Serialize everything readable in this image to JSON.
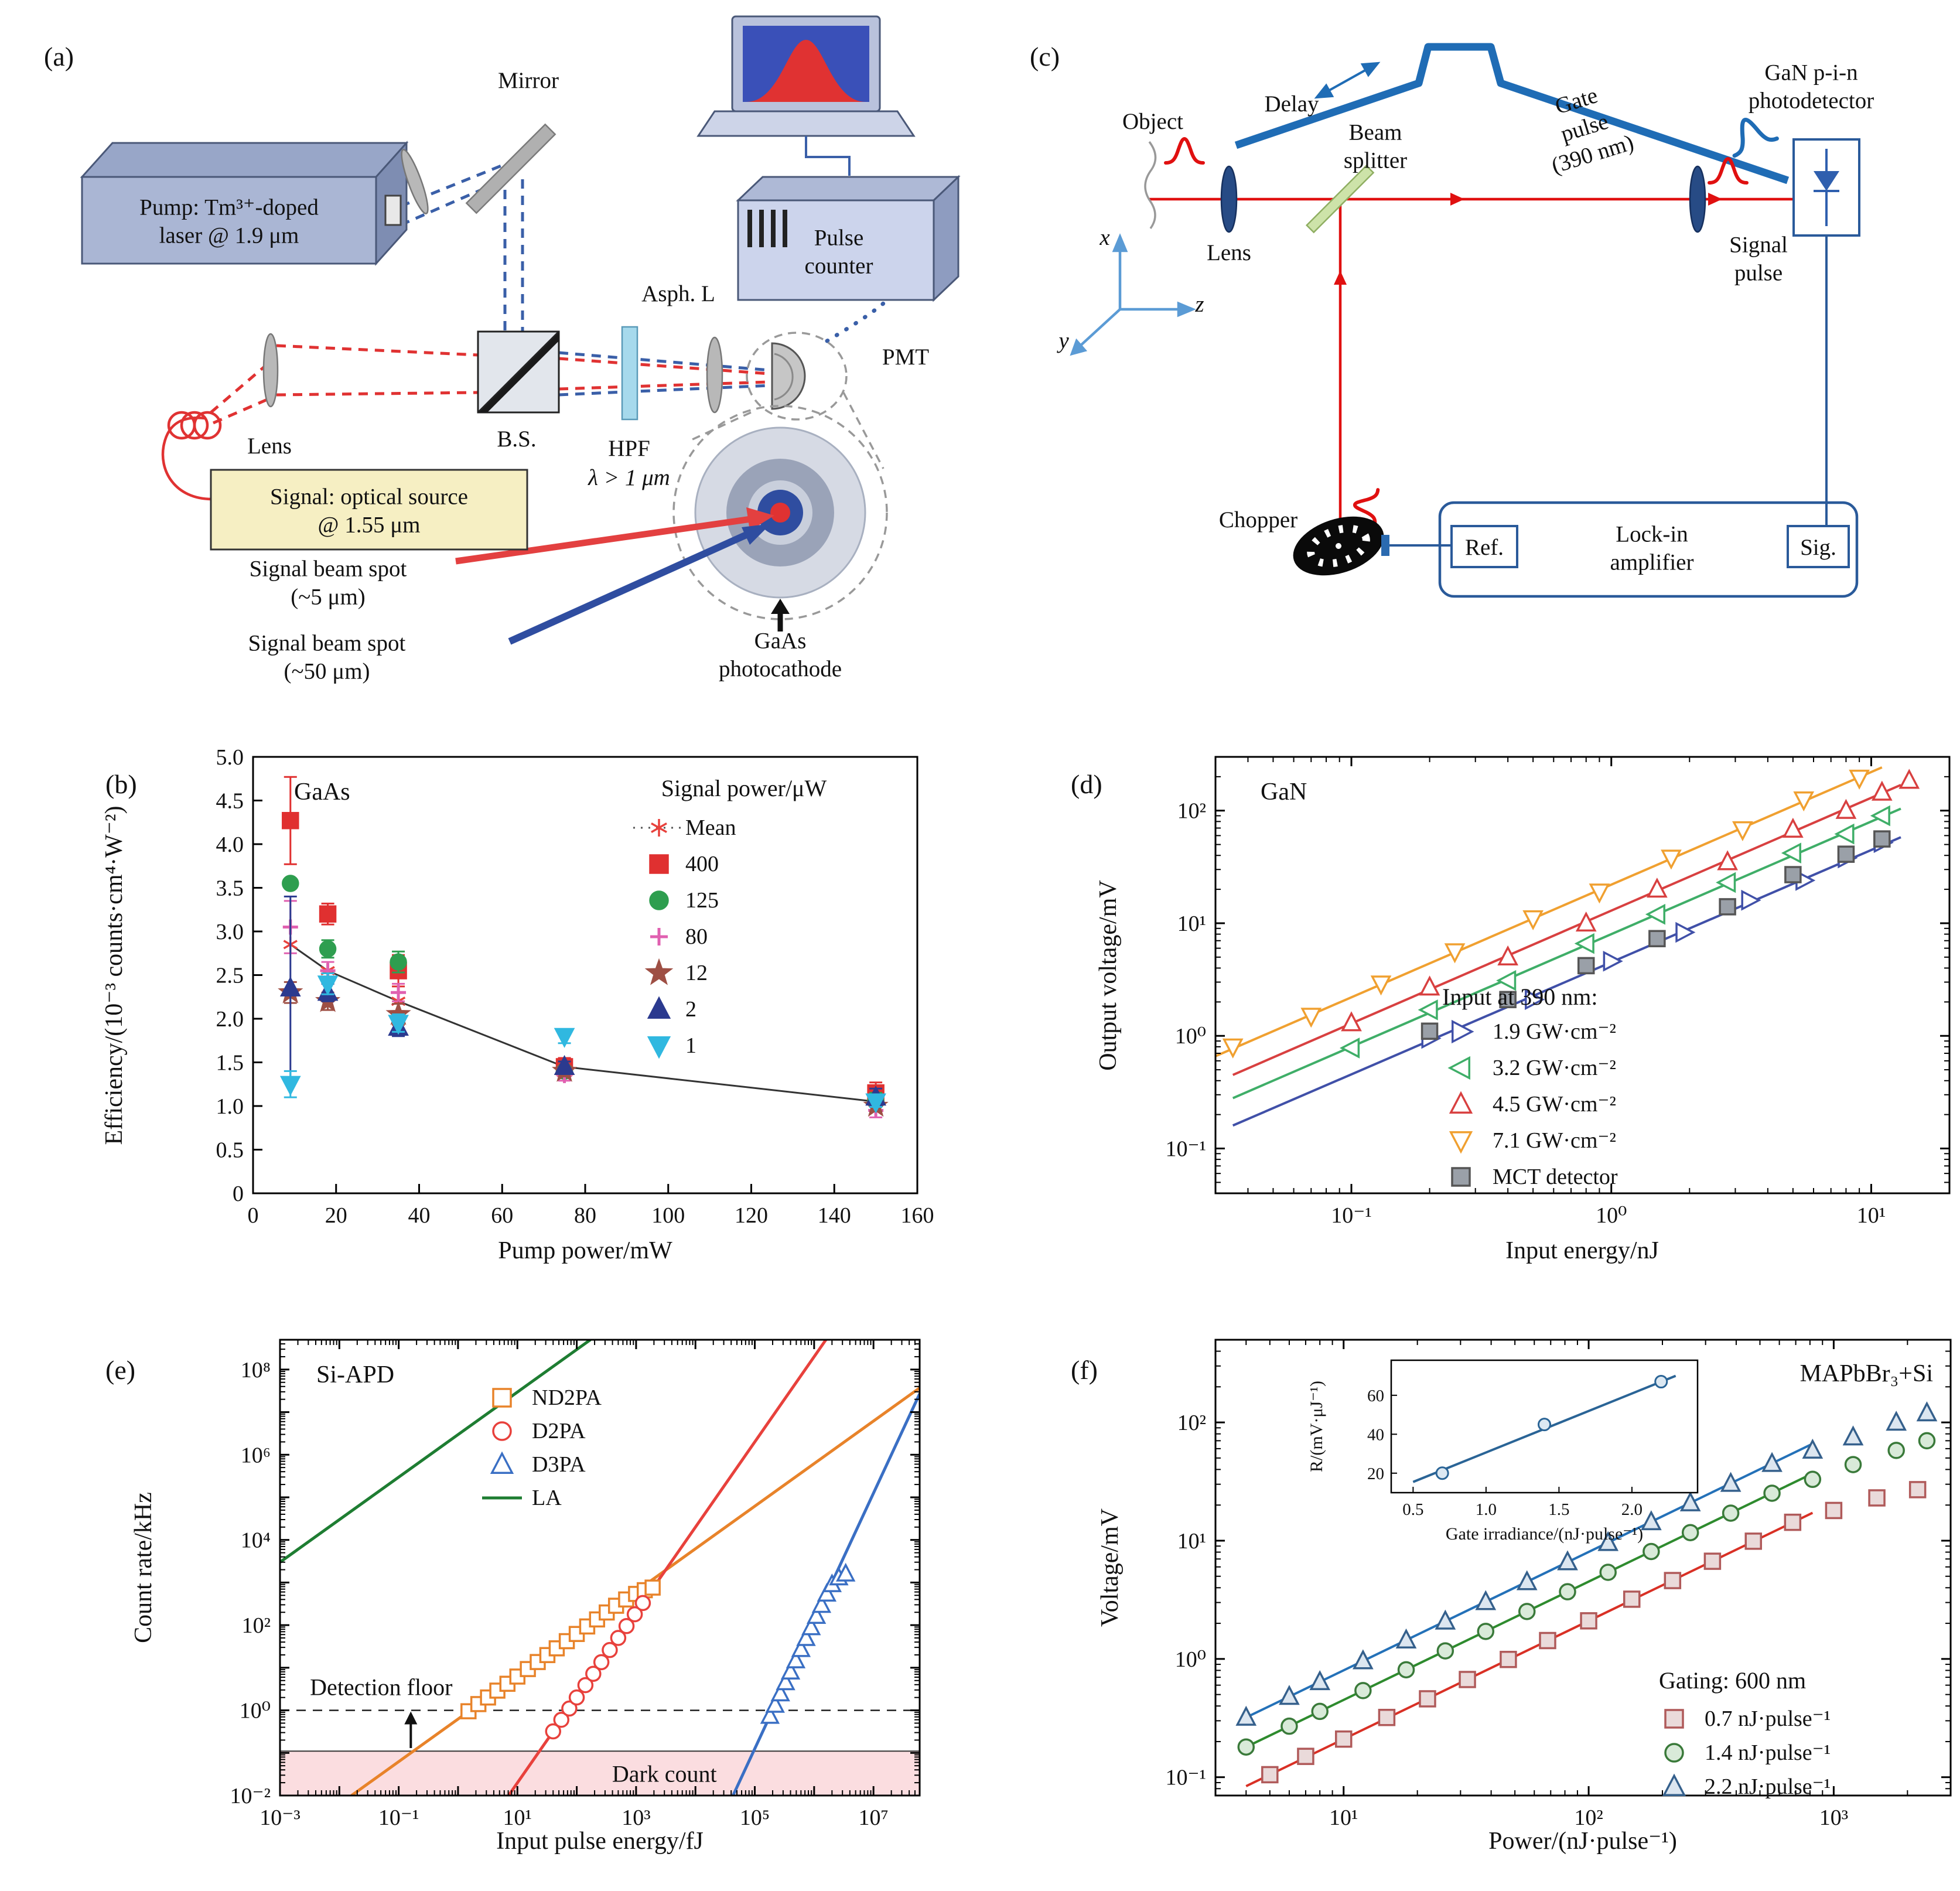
{
  "panel_a": {
    "tag": "(a)",
    "labels": {
      "pump": "Pump: Tm³⁺-doped\nlaser @ 1.9 μm",
      "mirror": "Mirror",
      "asph_l": "Asph. L",
      "pulse_counter": "Pulse\ncounter",
      "pmt": "PMT",
      "lens": "Lens",
      "bs": "B.S.",
      "hpf": "HPF",
      "hpf_cutoff": "λ > 1 μm",
      "signal_source": "Signal: optical source\n@ 1.55 μm",
      "spot_small": "Signal beam spot\n(~5 μm)",
      "spot_large": "Signal beam spot\n(~50 μm)",
      "photocathode": "GaAs\nphotocathode"
    }
  },
  "panel_c": {
    "tag": "(c)",
    "labels": {
      "delay": "Delay",
      "gate_pulse": "Gate\npulse\n(390 nm)",
      "detector": "GaN p-i-n\nphotodetector",
      "object": "Object",
      "beam_splitter": "Beam\nsplitter",
      "lens": "Lens",
      "signal_pulse": "Signal\npulse",
      "chopper": "Chopper",
      "lockin": "Lock-in\namplifier",
      "ref": "Ref.",
      "sig": "Sig.",
      "ax_x": "x",
      "ax_y": "y",
      "ax_z": "z"
    }
  },
  "chart_data": [
    {
      "id": "b",
      "panel_tag": "(b)",
      "type": "scatter",
      "title": "GaAs",
      "xlabel": "Pump power/mW",
      "ylabel": "Efficiency/(10⁻³ counts·cm⁴·W⁻²)",
      "xlim": [
        0,
        160
      ],
      "ylim": [
        0,
        5
      ],
      "xticks": [
        0,
        20,
        40,
        60,
        80,
        100,
        120,
        140,
        160
      ],
      "xtick_labels": [
        "0",
        "20",
        "40",
        "60",
        "80",
        "100",
        "120",
        "140",
        "160"
      ],
      "yticks": [
        0,
        0.5,
        1,
        1.5,
        2,
        2.5,
        3,
        3.5,
        4,
        4.5,
        5
      ],
      "ytick_labels": [
        "0",
        "0.5",
        "1.0",
        "1.5",
        "2.0",
        "2.5",
        "3.0",
        "3.5",
        "4.0",
        "4.5",
        "5.0"
      ],
      "legend_title": "Signal power/μW",
      "series": [
        {
          "name": "Mean",
          "marker": "asterisk",
          "color": "#e8413c",
          "connect": "#333333",
          "x": [
            9,
            18,
            35,
            75,
            150
          ],
          "y": [
            2.85,
            2.55,
            2.2,
            1.45,
            1.05
          ]
        },
        {
          "name": "400",
          "marker": "square",
          "color": "#e03030",
          "x": [
            9,
            18,
            35,
            75,
            150
          ],
          "y": [
            4.27,
            3.2,
            2.55,
            1.45,
            1.15
          ],
          "yerr": [
            0.5,
            0.12,
            0.18,
            0.1,
            0.12
          ]
        },
        {
          "name": "125",
          "marker": "circle",
          "color": "#2e9e4f",
          "x": [
            9,
            18,
            35,
            75,
            150
          ],
          "y": [
            3.55,
            2.8,
            2.65,
            1.4,
            1.05
          ],
          "yerr": [
            0,
            0.1,
            0.12,
            0.06,
            0.1
          ]
        },
        {
          "name": "80",
          "marker": "plus",
          "color": "#e060b0",
          "x": [
            9,
            18,
            35,
            75,
            150
          ],
          "y": [
            3.05,
            2.55,
            2.3,
            1.35,
            0.95
          ],
          "yerr": [
            0.3,
            0.1,
            0.1,
            0.06,
            0.08
          ]
        },
        {
          "name": "12",
          "marker": "star",
          "color": "#9e4f44",
          "x": [
            9,
            18,
            35,
            75,
            150
          ],
          "y": [
            2.3,
            2.2,
            2.05,
            1.4,
            1.0
          ],
          "yerr": [
            0.12,
            0.1,
            0.12,
            0.06,
            0.06
          ]
        },
        {
          "name": "2",
          "marker": "triangle-up",
          "color": "#2b3a8f",
          "x": [
            9,
            18,
            35,
            75,
            150
          ],
          "y": [
            2.35,
            2.3,
            1.9,
            1.45,
            1.1
          ],
          "yerr": [
            1.05,
            0.1,
            0.1,
            0.06,
            0.1
          ]
        },
        {
          "name": "1",
          "marker": "triangle-down",
          "color": "#30b8e0",
          "x": [
            9,
            18,
            35,
            75,
            150
          ],
          "y": [
            1.25,
            2.4,
            1.95,
            1.8,
            1.05
          ],
          "yerr": [
            0.15,
            0.12,
            0.1,
            0.08,
            0.06
          ]
        }
      ]
    },
    {
      "id": "d",
      "panel_tag": "(d)",
      "type": "loglog",
      "title": "GaN",
      "xlabel": "Input energy/nJ",
      "ylabel": "Output voltage/mV",
      "xlim": [
        0.03,
        20
      ],
      "ylim": [
        0.04,
        300
      ],
      "xticks": [
        0.1,
        1,
        10
      ],
      "xtick_labels": [
        "10⁻¹",
        "10⁰",
        "10¹"
      ],
      "yticks": [
        0.1,
        1,
        10,
        100
      ],
      "ytick_labels": [
        "10⁻¹",
        "10⁰",
        "10¹",
        "10²"
      ],
      "legend_title": "Input at 390 nm:",
      "series": [
        {
          "name": "1.9 GW·cm⁻²",
          "marker": "triangle-right",
          "open": true,
          "color": "#4050a8",
          "line": [
            [
              0.035,
              0.16
            ],
            [
              13,
              58
            ]
          ],
          "x": [
            0.2,
            0.5,
            1,
            1.9,
            3.4,
            5.5,
            8,
            11
          ],
          "y": [
            0.95,
            2.1,
            4.6,
            8.3,
            16,
            24,
            38,
            52
          ]
        },
        {
          "name": "3.2 GW·cm⁻²",
          "marker": "triangle-left",
          "open": true,
          "color": "#3fae68",
          "line": [
            [
              0.035,
              0.28
            ],
            [
              13,
              104
            ]
          ],
          "x": [
            0.1,
            0.2,
            0.4,
            0.8,
            1.5,
            2.8,
            5,
            8,
            11
          ],
          "y": [
            0.78,
            1.7,
            3.1,
            6.6,
            12,
            23,
            42,
            62,
            90
          ]
        },
        {
          "name": "4.5 GW·cm⁻²",
          "marker": "triangle-up",
          "open": true,
          "color": "#d84040",
          "line": [
            [
              0.035,
              0.45
            ],
            [
              13,
              169
            ]
          ],
          "x": [
            0.1,
            0.2,
            0.4,
            0.8,
            1.5,
            2.8,
            5,
            8,
            11,
            14
          ],
          "y": [
            1.3,
            2.7,
            5.0,
            10,
            20,
            35,
            68,
            100,
            145,
            185
          ]
        },
        {
          "name": "7.1 GW·cm⁻²",
          "marker": "triangle-down",
          "open": true,
          "color": "#f0a030",
          "line": [
            [
              0.03,
              0.66
            ],
            [
              11,
              242
            ]
          ],
          "x": [
            0.035,
            0.07,
            0.13,
            0.25,
            0.5,
            0.9,
            1.7,
            3.2,
            5.5,
            9
          ],
          "y": [
            0.8,
            1.5,
            2.9,
            5.6,
            11,
            19,
            38,
            68,
            125,
            195
          ]
        },
        {
          "name": "MCT detector",
          "marker": "square",
          "open": false,
          "color": "#9aa0a8",
          "edge": "#555555",
          "x": [
            0.2,
            0.4,
            0.8,
            1.5,
            2.8,
            5,
            8,
            11
          ],
          "y": [
            1.1,
            2.1,
            4.2,
            7.3,
            14,
            27,
            41,
            56
          ]
        }
      ]
    },
    {
      "id": "e",
      "panel_tag": "(e)",
      "type": "loglog",
      "title": "Si-APD",
      "xlabel": "Input pulse energy/fJ",
      "ylabel": "Count rate/kHz",
      "xlim": [
        0.001,
        60000000.0
      ],
      "ylim": [
        0.01,
        500000000.0
      ],
      "xticks": [
        0.001,
        0.1,
        10,
        1000,
        100000,
        10000000
      ],
      "xtick_labels": [
        "10⁻³",
        "10⁻¹",
        "10¹",
        "10³",
        "10⁵",
        "10⁷"
      ],
      "yticks": [
        0.01,
        1,
        100,
        10000,
        1000000,
        100000000
      ],
      "ytick_labels": [
        "10⁻²",
        "10⁰",
        "10²",
        "10⁴",
        "10⁶",
        "10⁸"
      ],
      "dark_band": {
        "y0": 0.01,
        "y1": 0.11,
        "label": "Dark count",
        "color": "#fbdde0",
        "label_x": 3000
      },
      "floor": {
        "y": 1.0,
        "label": "Detection floor",
        "label_x": 0.0032,
        "arrow_x": 0.16
      },
      "series": [
        {
          "name": "ND2PA",
          "marker": "square",
          "open": true,
          "color": "#e8832a",
          "line": [
            [
              0.016,
              0.01
            ],
            [
              60000000.0,
              37000000.0
            ]
          ],
          "x": [
            1.5,
            2.2,
            3.2,
            4.6,
            6.8,
            10,
            15,
            22,
            32,
            46,
            68,
            100,
            150,
            220,
            320,
            460,
            680,
            1000,
            1400,
            1900
          ],
          "y": [
            0.95,
            1.4,
            2.0,
            2.9,
            4.2,
            6.2,
            9.3,
            13.6,
            19.8,
            28.5,
            42,
            62,
            93,
            136,
            198,
            285,
            400,
            540,
            660,
            760
          ]
        },
        {
          "name": "D2PA",
          "marker": "circle",
          "open": true,
          "color": "#e8413c",
          "line": [
            [
              7.1,
              0.01
            ],
            [
              1580000.0,
              500000000.0
            ]
          ],
          "x": [
            40,
            55,
            75,
            100,
            140,
            190,
            260,
            360,
            500,
            690,
            950,
            1300
          ],
          "y": [
            0.32,
            0.6,
            1.1,
            2.0,
            3.9,
            7.2,
            13.5,
            26,
            50,
            95,
            180,
            330
          ]
        },
        {
          "name": "D3PA",
          "marker": "triangle-up",
          "open": true,
          "color": "#3a6fc4",
          "line": [
            [
              43000,
              0.01
            ],
            [
              60000000.0,
              27000000.0
            ]
          ],
          "x": [
            180000,
            220000,
            270000,
            330000,
            400000,
            490000,
            600000,
            730000,
            890000,
            1090000,
            1330000,
            1630000,
            2000000,
            2600000,
            3400000
          ],
          "y": [
            0.73,
            1.33,
            2.46,
            4.5,
            8.0,
            14.7,
            27,
            49,
            88,
            162,
            294,
            541,
            900,
            1300,
            1600
          ]
        },
        {
          "name": "LA",
          "marker": "line",
          "color": "#1e7d32",
          "line": [
            [
              0.001,
              3000
            ],
            [
              170,
              500000000.0
            ]
          ]
        }
      ]
    },
    {
      "id": "f",
      "panel_tag": "(f)",
      "type": "loglog",
      "title": "MAPbBr₃+Si",
      "xlabel": "Power/(nJ·pulse⁻¹)",
      "ylabel": "Voltage/mV",
      "xlim": [
        3,
        3000
      ],
      "ylim": [
        0.07,
        500
      ],
      "xticks": [
        10,
        100,
        1000
      ],
      "xtick_labels": [
        "10¹",
        "10²",
        "10³"
      ],
      "yticks": [
        0.1,
        1,
        10,
        100
      ],
      "ytick_labels": [
        "10⁻¹",
        "10⁰",
        "10¹",
        "10²"
      ],
      "legend_title": "Gating: 600 nm",
      "series": [
        {
          "name": "0.7 nJ·pulse⁻¹",
          "marker": "square",
          "open": true,
          "color": "#b05a5a",
          "fill": "#eadada",
          "lineColor": "#d93025",
          "line": [
            [
              4,
              0.084
            ],
            [
              820,
              17.2
            ]
          ],
          "x": [
            5,
            7,
            10,
            15,
            22,
            32,
            47,
            68,
            100,
            150,
            220,
            320,
            470,
            680,
            1000,
            1500,
            2200
          ],
          "y": [
            0.105,
            0.15,
            0.21,
            0.32,
            0.46,
            0.67,
            0.99,
            1.43,
            2.1,
            3.2,
            4.6,
            6.7,
            9.9,
            14.3,
            18,
            23,
            27
          ]
        },
        {
          "name": "1.4 nJ·pulse⁻¹",
          "marker": "circle",
          "open": true,
          "color": "#3a7a3a",
          "fill": "#d9ead9",
          "lineColor": "#2e8b2e",
          "line": [
            [
              4,
              0.18
            ],
            [
              820,
              37
            ]
          ],
          "x": [
            4,
            6,
            8,
            12,
            18,
            26,
            38,
            56,
            82,
            120,
            180,
            260,
            380,
            560,
            820,
            1200,
            1800,
            2400
          ],
          "y": [
            0.18,
            0.27,
            0.36,
            0.54,
            0.81,
            1.17,
            1.71,
            2.52,
            3.7,
            5.4,
            8.1,
            11.7,
            17.1,
            25.2,
            33,
            44,
            58,
            70
          ]
        },
        {
          "name": "2.2 nJ·pulse⁻¹",
          "marker": "triangle-up",
          "open": true,
          "color": "#35608c",
          "fill": "#dce6f0",
          "lineColor": "#2471b8",
          "line": [
            [
              4,
              0.32
            ],
            [
              820,
              66
            ]
          ],
          "x": [
            4,
            6,
            8,
            12,
            18,
            26,
            38,
            56,
            82,
            120,
            180,
            260,
            380,
            560,
            820,
            1200,
            1800,
            2400
          ],
          "y": [
            0.32,
            0.48,
            0.64,
            0.96,
            1.44,
            2.08,
            3.04,
            4.48,
            6.6,
            9.6,
            14.4,
            20.8,
            30.4,
            44.8,
            58,
            75,
            100,
            120
          ]
        }
      ],
      "inset": {
        "xlabel": "Gate irradiance/(nJ·pulse⁻¹)",
        "ylabel": "R/(mV·μJ⁻¹)",
        "xlim": [
          0.35,
          2.45
        ],
        "ylim": [
          10,
          78
        ],
        "xticks": [
          0.5,
          1.0,
          1.5,
          2.0
        ],
        "xtick_labels": [
          "0.5",
          "1.0",
          "1.5",
          "2.0"
        ],
        "yticks": [
          20,
          40,
          60
        ],
        "ytick_labels": [
          "20",
          "40",
          "60"
        ],
        "points_x": [
          0.7,
          1.4,
          2.2
        ],
        "points_y": [
          20,
          45,
          67
        ],
        "fit": [
          [
            0.5,
            15.5
          ],
          [
            2.3,
            70
          ]
        ],
        "color": "#2a6496"
      }
    }
  ]
}
